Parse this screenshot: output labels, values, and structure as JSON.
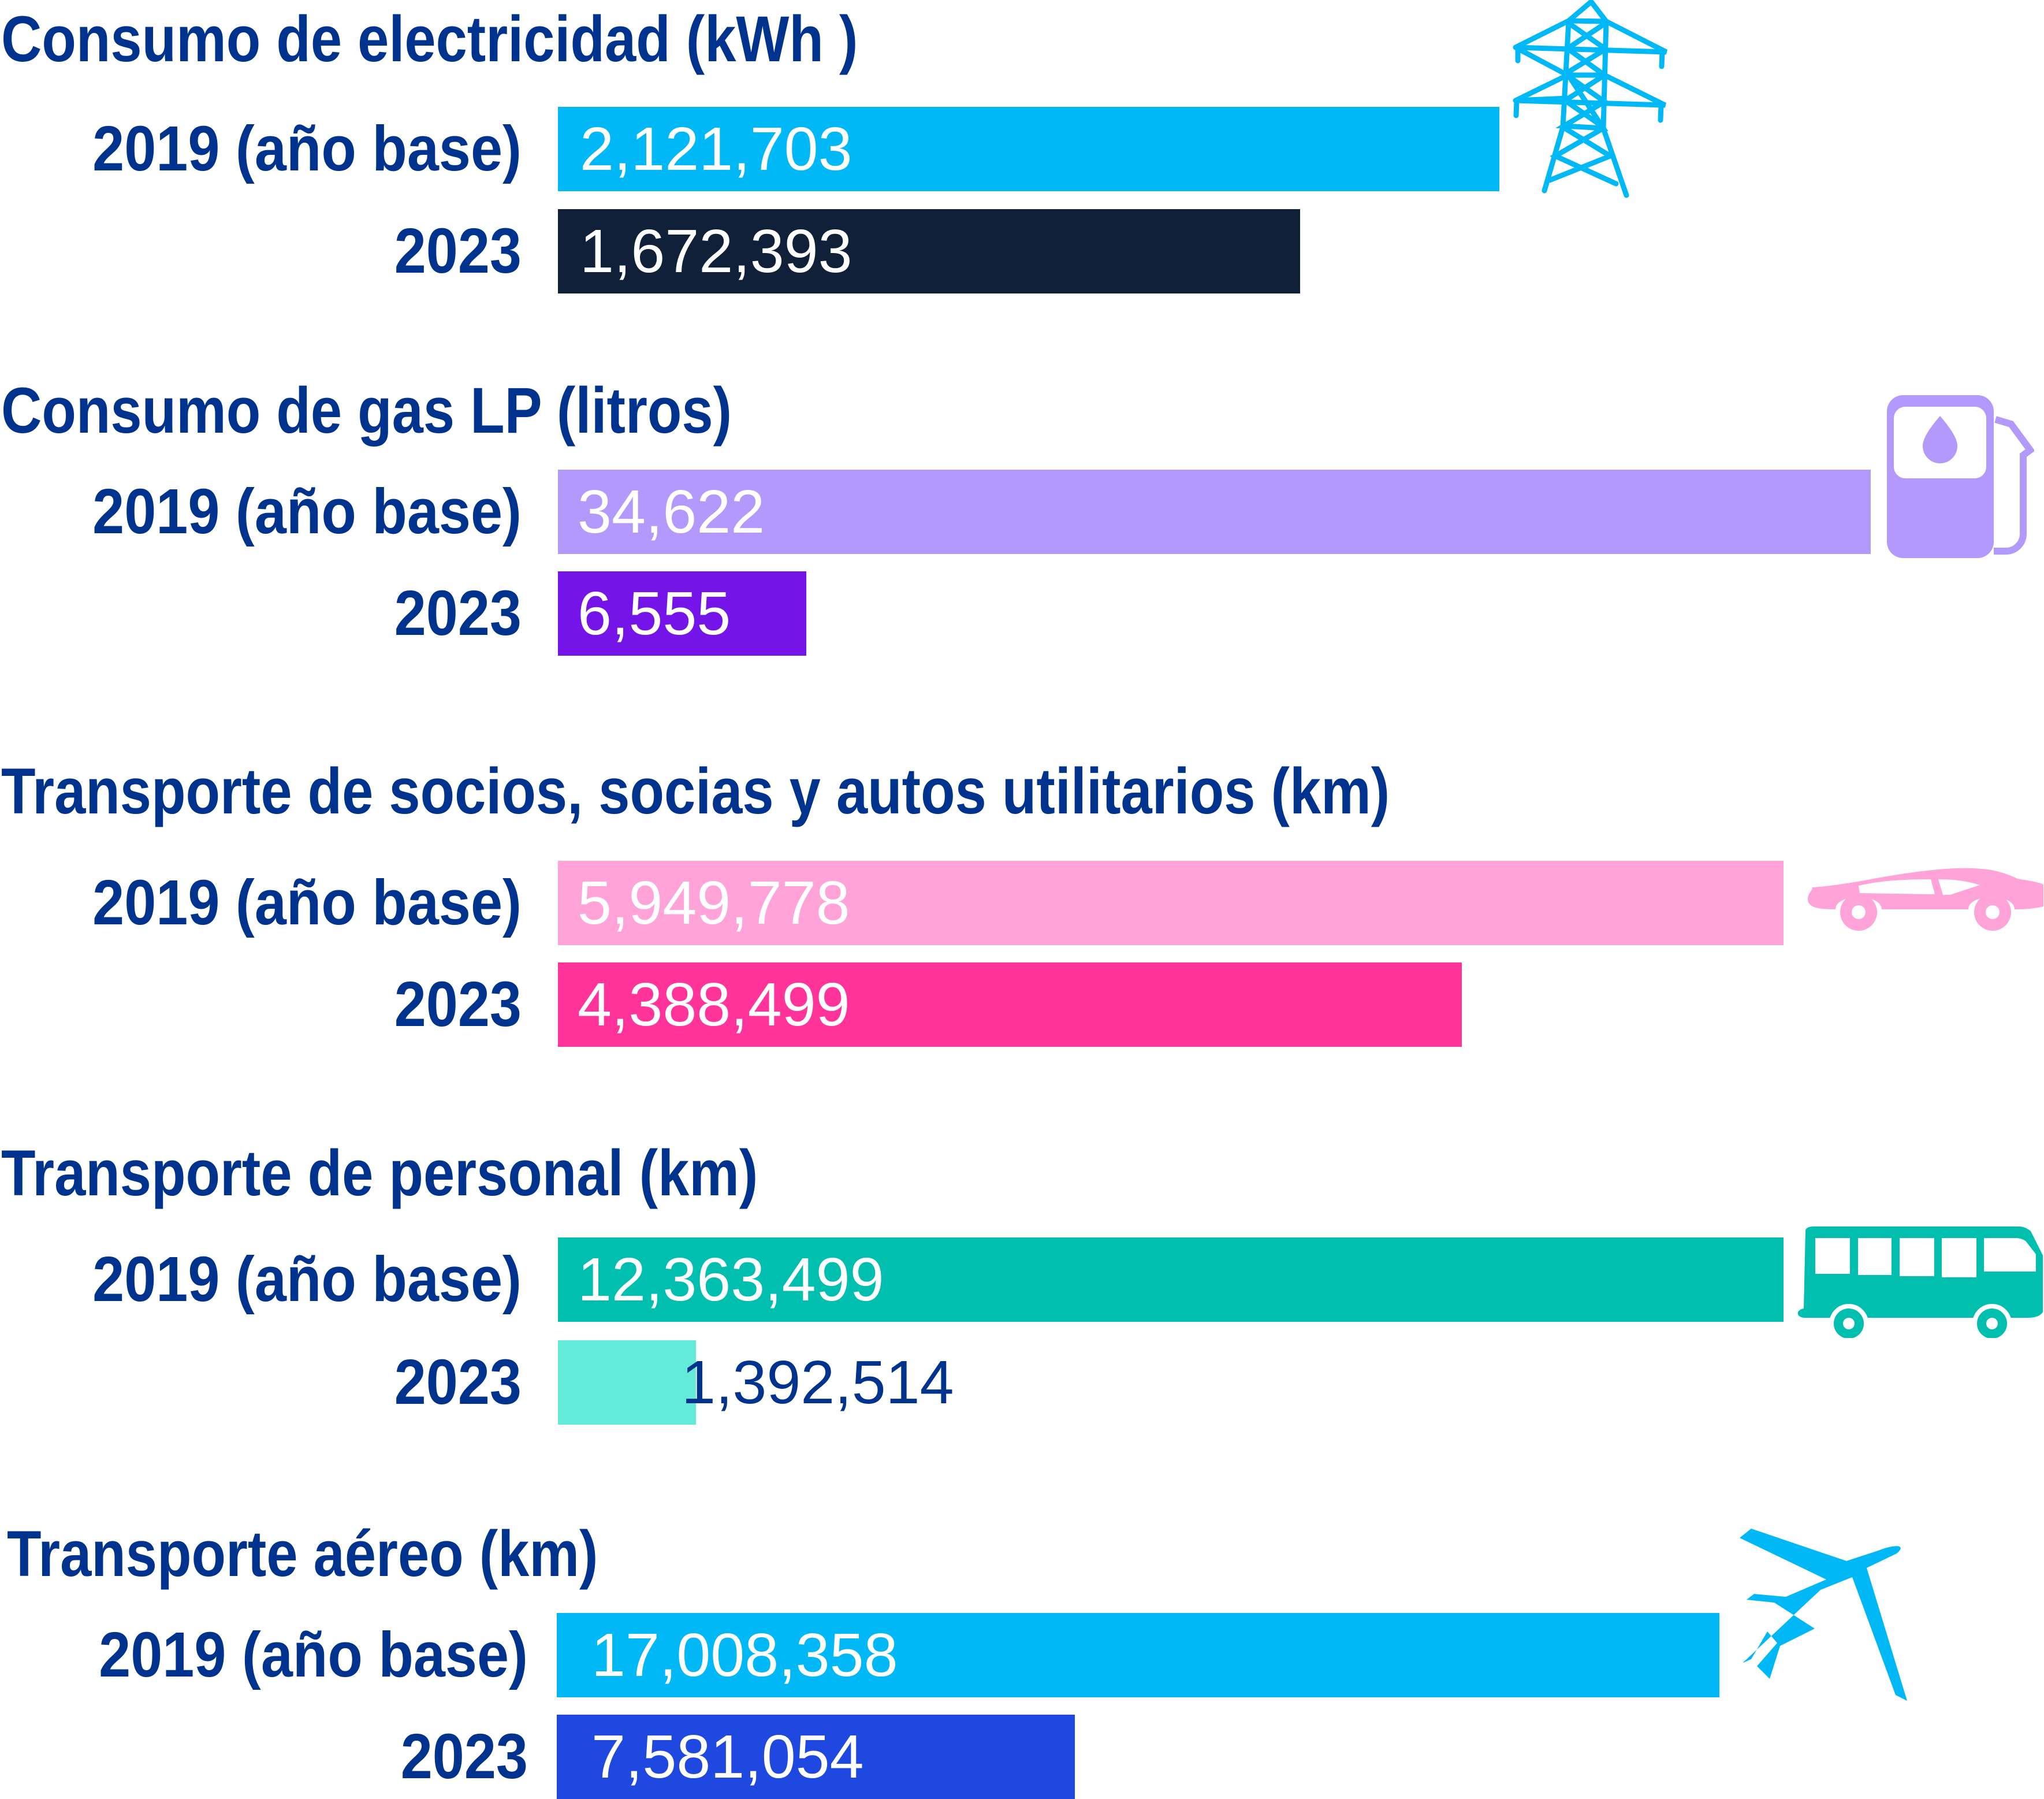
{
  "colors": {
    "text": "#00338d"
  },
  "chart_data": {
    "type": "bar",
    "orientation": "horizontal",
    "title": "",
    "groups": [
      {
        "title": "Consumo de electricidad (kWh )",
        "icon": "power-tower-icon",
        "series": [
          {
            "name": "2019 (año base)",
            "value": 2121703,
            "label": "2,121,703",
            "color": "#00b8f5"
          },
          {
            "name": "2023",
            "value": 1672393,
            "label": "1,672,393",
            "color": "#0f2038"
          }
        ]
      },
      {
        "title": "Consumo de gas LP (litros)",
        "icon": "gas-pump-icon",
        "series": [
          {
            "name": "2019 (año base)",
            "value": 34622,
            "label": "34,622",
            "color": "#b499fd"
          },
          {
            "name": "2023",
            "value": 6555,
            "label": "6,555",
            "color": "#7514e8"
          }
        ]
      },
      {
        "title": "Transporte de socios, socias y autos utilitarios (km)",
        "icon": "car-icon",
        "series": [
          {
            "name": "2019 (año base)",
            "value": 5949778,
            "label": "5,949,778",
            "color": "#ffa3d8"
          },
          {
            "name": "2023",
            "value": 4388499,
            "label": "4,388,499",
            "color": "#ff3399"
          }
        ]
      },
      {
        "title": "Transporte de personal (km)",
        "icon": "bus-icon",
        "series": [
          {
            "name": "2019 (año base)",
            "value": 12363499,
            "label": "12,363,499",
            "color": "#00bfae"
          },
          {
            "name": "2023",
            "value": 1392514,
            "label": "1,392,514",
            "color": "#63ead8"
          }
        ]
      },
      {
        "title": "Transporte aéreo (km)",
        "icon": "airplane-icon",
        "series": [
          {
            "name": "2019 (año base)",
            "value": 17008358,
            "label": "17,008,358",
            "color": "#00b8f5"
          },
          {
            "name": "2023",
            "value": 7581054,
            "label": "7,581,054",
            "color": "#1f48e0"
          }
        ]
      }
    ]
  }
}
